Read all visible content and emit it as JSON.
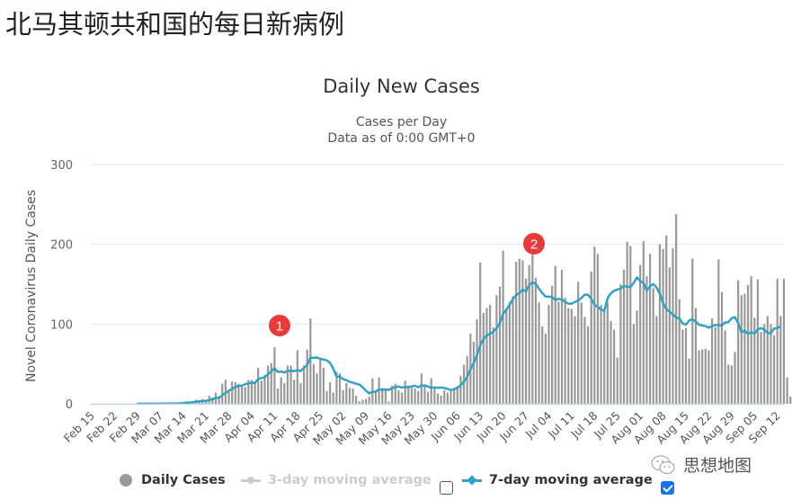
{
  "page": {
    "title": "北马其顿共和国的每日新病例"
  },
  "chart": {
    "title": "Daily New Cases",
    "subtitle_line1": "Cases per Day",
    "subtitle_line2": "Data as of 0:00 GMT+0"
  },
  "legend": {
    "daily_cases_label": "Daily Cases",
    "three_day_label": "3-day moving average",
    "seven_day_label": "7-day moving average",
    "three_day_checked": false,
    "seven_day_checked": true
  },
  "annotations": [
    {
      "label": "1",
      "color": "#e83a3a"
    },
    {
      "label": "2",
      "color": "#e83a3a"
    }
  ],
  "watermark": {
    "text": "思想地图",
    "icon": "wechat-icon"
  },
  "colors": {
    "bars": "#999999",
    "seven_day_line": "#34a1c4",
    "three_day_legend": "#cccccc",
    "grid": "#e6e6e6",
    "axis_line": "#ccd6eb",
    "annotation": "#e83a3a"
  },
  "chart_data": {
    "type": "bar",
    "title": "Daily New Cases",
    "subtitle": "Cases per Day / Data as of 0:00 GMT+0",
    "xlabel": "",
    "ylabel": "Novel Coronavirus Daily Cases",
    "ylim": [
      0,
      300
    ],
    "yticks": [
      0,
      100,
      200,
      300
    ],
    "grid": true,
    "legend_position": "bottom",
    "x_tick_labels": [
      "Feb 15",
      "Feb 22",
      "Feb 29",
      "Mar 07",
      "Mar 14",
      "Mar 21",
      "Mar 28",
      "Apr 04",
      "Apr 11",
      "Apr 18",
      "Apr 25",
      "May 02",
      "May 09",
      "May 16",
      "May 23",
      "May 30",
      "Jun 06",
      "Jun 13",
      "Jun 20",
      "Jun 27",
      "Jul 04",
      "Jul 11",
      "Jul 18",
      "Jul 25",
      "Aug 01",
      "Aug 08",
      "Aug 15",
      "Aug 22",
      "Aug 29",
      "Sep 05",
      "Sep 12"
    ],
    "start_date": "Feb 15",
    "series": [
      {
        "name": "Daily Cases",
        "type": "bar",
        "values": [
          0,
          0,
          0,
          0,
          0,
          0,
          0,
          0,
          0,
          0,
          0,
          0,
          0,
          0,
          1,
          0,
          0,
          0,
          0,
          0,
          0,
          0,
          1,
          0,
          0,
          0,
          1,
          0,
          2,
          3,
          2,
          3,
          5,
          4,
          6,
          3,
          10,
          8,
          14,
          9,
          25,
          30,
          18,
          28,
          27,
          25,
          22,
          21,
          30,
          30,
          26,
          45,
          29,
          36,
          48,
          51,
          71,
          19,
          33,
          26,
          48,
          48,
          30,
          67,
          26,
          48,
          68,
          107,
          50,
          38,
          55,
          45,
          16,
          27,
          14,
          40,
          38,
          17,
          26,
          20,
          19,
          10,
          3,
          5,
          6,
          9,
          32,
          17,
          33,
          20,
          18,
          3,
          23,
          25,
          17,
          14,
          29,
          23,
          20,
          19,
          16,
          38,
          23,
          15,
          32,
          22,
          13,
          10,
          17,
          14,
          16,
          20,
          22,
          35,
          49,
          60,
          88,
          78,
          106,
          177,
          114,
          120,
          124,
          96,
          136,
          147,
          192,
          118,
          128,
          135,
          178,
          182,
          180,
          157,
          174,
          193,
          158,
          127,
          97,
          88,
          124,
          148,
          173,
          128,
          168,
          133,
          120,
          119,
          110,
          153,
          127,
          109,
          97,
          166,
          197,
          188,
          124,
          119,
          127,
          104,
          93,
          58,
          150,
          168,
          203,
          198,
          100,
          117,
          174,
          204,
          160,
          188,
          145,
          110,
          200,
          194,
          211,
          171,
          195,
          238,
          131,
          93,
          95,
          57,
          182,
          120,
          67,
          68,
          69,
          67,
          107,
          96,
          181,
          140,
          92,
          49,
          48,
          65,
          155,
          136,
          138,
          149,
          160,
          108,
          156,
          90,
          100,
          110,
          100,
          86,
          157,
          110,
          157,
          33,
          9,
          102,
          141,
          159,
          100,
          89,
          33,
          100,
          110,
          86,
          135,
          138,
          96
        ],
        "color": "#999999"
      },
      {
        "name": "7-day moving average",
        "type": "line",
        "values": [
          0,
          0,
          0,
          0,
          0,
          0,
          0,
          0,
          0,
          0,
          0,
          0,
          0,
          0,
          0.1,
          0.1,
          0.1,
          0.1,
          0.1,
          0.1,
          0.1,
          0.3,
          0.3,
          0.3,
          0.3,
          0.4,
          0.4,
          0.6,
          0.9,
          1.3,
          1.6,
          2,
          2.7,
          3.2,
          3.6,
          3.7,
          4.7,
          5.6,
          7.3,
          7.6,
          10.7,
          13.8,
          16.2,
          18.8,
          21,
          22.6,
          22.7,
          24.6,
          25.5,
          26.4,
          26.2,
          31.1,
          32.3,
          33.4,
          37.2,
          40.7,
          44.7,
          39.9,
          40.4,
          39.4,
          41.2,
          41.4,
          40.9,
          42.3,
          40.9,
          44.9,
          48.9,
          57.7,
          57.6,
          58.1,
          56.4,
          55.4,
          54.5,
          51.3,
          43.9,
          34,
          34,
          31,
          29.5,
          27.4,
          26.6,
          25,
          24.1,
          20.8,
          16.3,
          13.1,
          14.9,
          15.3,
          18.1,
          17.4,
          18.1,
          17.4,
          19.6,
          20.7,
          21.5,
          20.4,
          20.9,
          20.9,
          21.7,
          22.6,
          20.9,
          22.6,
          23.1,
          21.7,
          20.1,
          20.6,
          20.1,
          20.4,
          19.8,
          18.5,
          17.4,
          18.3,
          20.1,
          23.2,
          27.8,
          33.8,
          43.1,
          51.1,
          60.9,
          73.5,
          81,
          86,
          87.6,
          90.5,
          94.7,
          101.3,
          112.5,
          118.1,
          124.4,
          131,
          136.3,
          139,
          142.9,
          141.1,
          148.8,
          152.1,
          150.7,
          144.3,
          138.9,
          134.5,
          134.3,
          133.9,
          130.1,
          131.6,
          130.6,
          127.8,
          125.5,
          125.6,
          127.7,
          129.6,
          132.8,
          137,
          136.6,
          131.7,
          124.4,
          121.3,
          118.2,
          116.5,
          132.4,
          138.6,
          141.6,
          143.3,
          144.5,
          147.8,
          146.7,
          146.6,
          151.6,
          158.6,
          153.7,
          151.7,
          142,
          147.2,
          150.2,
          145.8,
          137.9,
          126.1,
          118.7,
          115.6,
          112.2,
          108.3,
          106.9,
          100.7,
          99.3,
          104.5,
          105.9,
          103.3,
          99,
          98.2,
          97.3,
          95.5,
          97.3,
          98.8,
          98.6,
          98.4,
          101.9,
          102.4,
          107.2,
          108.7,
          101.2,
          89.8,
          91.7,
          87.7,
          89.7,
          88.2,
          93.3,
          95,
          93,
          88.9,
          88.5,
          94.4,
          95.2,
          96.9
        ],
        "color": "#34a1c4"
      },
      {
        "name": "3-day moving average",
        "type": "line",
        "visible": false,
        "values": []
      }
    ]
  }
}
